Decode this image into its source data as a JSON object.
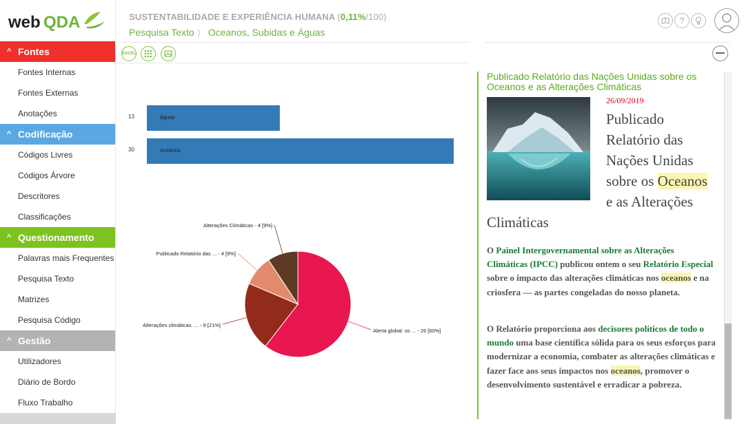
{
  "app": {
    "logo_text_web": "web",
    "logo_text_qda": "QDA"
  },
  "colors": {
    "fontes": "#f0302a",
    "codificacao": "#5aa7e2",
    "questionamento": "#7cc320",
    "gestao": "#b3b3b3",
    "accent": "#6db33f",
    "bar": "#337ab7",
    "pie": [
      "#e8174f",
      "#922b1b",
      "#e48a6c",
      "#5d3a24"
    ]
  },
  "header": {
    "project_name": "SUSTENTABILIDADE E EXPERIÊNCIA HUMANA",
    "progress_open": "(",
    "progress_pct": "0,11%",
    "progress_total": "/100)",
    "breadcrumb": [
      "Pesquisa Texto",
      "Oceanos, Subidas e Águas"
    ],
    "icons": [
      "book-icon",
      "help-icon",
      "bulb-icon",
      "user-icon"
    ]
  },
  "toolbar": {
    "excel_label": "EXCEL",
    "icons": [
      "grid-icon",
      "image-icon"
    ]
  },
  "sidebar": {
    "sections": [
      {
        "label": "Fontes",
        "color": "#f0302a",
        "items": [
          "Fontes Internas",
          "Fontes Externas",
          "Anotações"
        ]
      },
      {
        "label": "Codificação",
        "color": "#5aa7e2",
        "items": [
          "Códigos Livres",
          "Códigos Árvore",
          "Descritores",
          "Classificações"
        ]
      },
      {
        "label": "Questionamento",
        "color": "#7cc320",
        "items": [
          "Palavras mais Frequentes",
          "Pesquisa Texto",
          "Matrizes",
          "Pesquisa Código"
        ]
      },
      {
        "label": "Gestão",
        "color": "#b3b3b3",
        "items": [
          "Utilizadores",
          "Diário de Bordo",
          "Fluxo Trabalho"
        ]
      }
    ]
  },
  "chart_data": [
    {
      "type": "bar",
      "orientation": "horizontal",
      "categories": [
        "águas",
        "oceanos"
      ],
      "values": [
        13,
        30
      ],
      "xlim": [
        0,
        30
      ]
    },
    {
      "type": "pie",
      "labels": [
        "Alerta global: os ... - 26 [60%]",
        "Alterações climáticas. ... - 9 [21%]",
        "Publicado Relatório das ... - 4 [9%]",
        "Alterações Climáticas - 4 [9%]"
      ],
      "values": [
        26,
        9,
        4,
        4
      ],
      "percents": [
        60,
        21,
        9,
        9
      ]
    }
  ],
  "document": {
    "title": "Publicado Relatório das Nações Unidas sobre os Oceanos e as Alterações Climáticas",
    "date": "26/09/2019",
    "heading_parts": [
      "Publicado",
      "Relatório das",
      "Nações Unidas",
      "sobre os ",
      "Oceanos",
      "e as Alterações",
      "Climáticas"
    ],
    "para1": {
      "t1": "O ",
      "l1": "Painel Intergovernamental sobre as Alterações Climáticas (IPCC)",
      "t2": " publicou ontem o seu ",
      "l2": "Relatório Especial",
      "t3": " sobre o impacto das alterações climáticas nos ",
      "h1": "oceanos",
      "t4": " e na criosfera — as partes congeladas do nosso planeta."
    },
    "para2": {
      "t1": "O Relatório proporciona aos ",
      "l1": "decisores políticos de todo o mundo",
      "t2": " uma base científica sólida para os seus esforços para modernizar a economia, combater as alterações climáticas e fazer face aos seus impactos nos ",
      "h1": "oceanos",
      "t3": ", promover o desenvolvimento sustentável e erradicar a pobreza."
    }
  }
}
